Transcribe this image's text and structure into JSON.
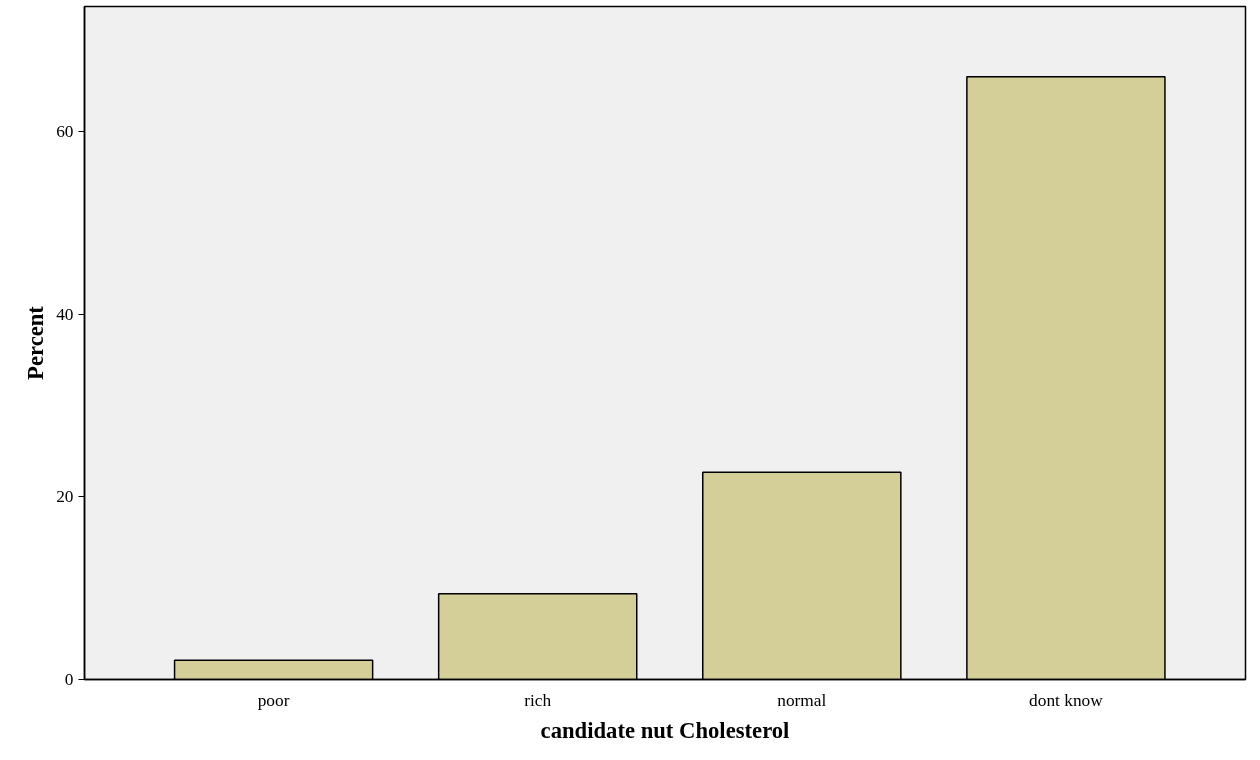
{
  "chart_data": {
    "type": "bar",
    "xlabel": "candidate nut Cholesterol",
    "ylabel": "Percent",
    "categories": [
      "poor",
      "rich",
      "normal",
      "dont know"
    ],
    "values": [
      2.1,
      9.4,
      22.7,
      66.0
    ],
    "color": "#d4cf99",
    "ylim": [
      0,
      73.7
    ],
    "yticks": [
      0,
      20,
      40,
      60
    ],
    "grid": false
  }
}
